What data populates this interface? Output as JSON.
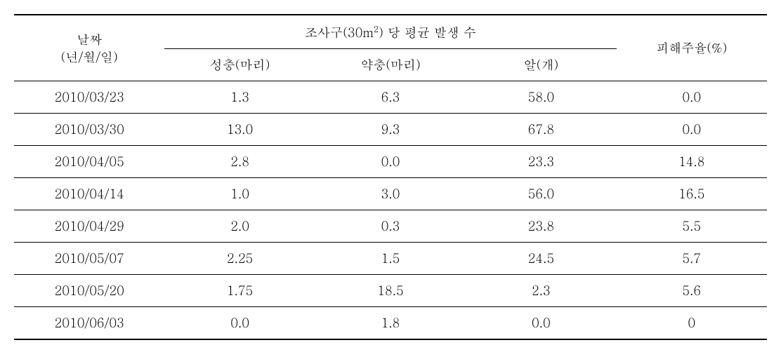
{
  "table": {
    "type": "table",
    "background_color": "#ffffff",
    "text_color": "#000000",
    "border_color": "#000000",
    "font_size_pt": 14,
    "header": {
      "date_label": "날짜",
      "date_sub": "(년/월/일)",
      "group_label_prefix": "조사구(30m",
      "group_label_sup": "2",
      "group_label_suffix": ") 당 평균 발생 수",
      "col_adult": "성충(마리)",
      "col_nymph": "약충(마리)",
      "col_egg": "알(개)",
      "col_damage": "피해주율(%)"
    },
    "columns": [
      "date",
      "adult",
      "nymph",
      "egg",
      "damage"
    ],
    "rows": [
      {
        "date": "2010/03/23",
        "adult": "1.3",
        "nymph": "6.3",
        "egg": "58.0",
        "damage": "0.0"
      },
      {
        "date": "2010/03/30",
        "adult": "13.0",
        "nymph": "9.3",
        "egg": "67.8",
        "damage": "0.0"
      },
      {
        "date": "2010/04/05",
        "adult": "2.8",
        "nymph": "0.0",
        "egg": "23.3",
        "damage": "14.8"
      },
      {
        "date": "2010/04/14",
        "adult": "1.0",
        "nymph": "3.0",
        "egg": "56.0",
        "damage": "16.5"
      },
      {
        "date": "2010/04/29",
        "adult": "2.0",
        "nymph": "0.3",
        "egg": "23.8",
        "damage": "5.5"
      },
      {
        "date": "2010/05/07",
        "adult": "2.25",
        "nymph": "1.5",
        "egg": "24.5",
        "damage": "5.7"
      },
      {
        "date": "2010/05/20",
        "adult": "1.75",
        "nymph": "18.5",
        "egg": "2.3",
        "damage": "5.6"
      },
      {
        "date": "2010/06/03",
        "adult": "0.0",
        "nymph": "1.8",
        "egg": "0.0",
        "damage": "0"
      }
    ],
    "col_widths_pct": [
      20,
      20,
      20,
      20,
      20
    ]
  }
}
